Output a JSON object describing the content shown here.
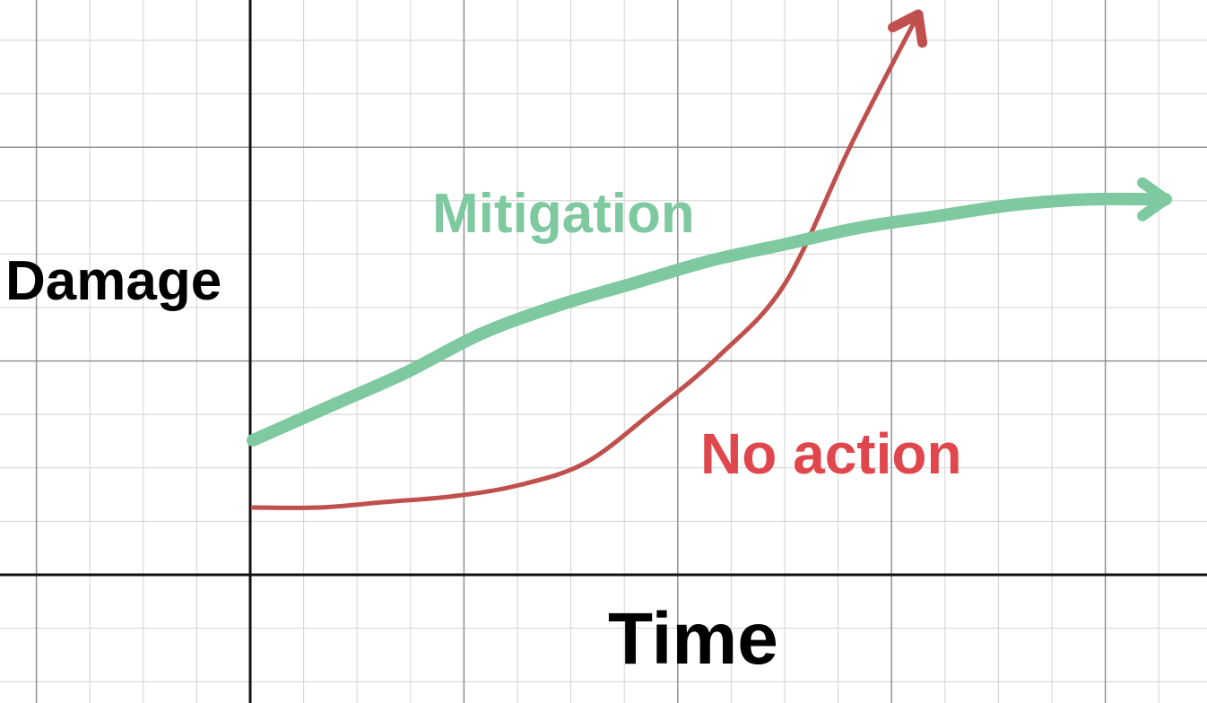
{
  "chart_data": {
    "type": "line",
    "title": "",
    "xlabel": "Time",
    "ylabel": "Damage",
    "grid": true,
    "axes_ticks": false,
    "legend": "none",
    "series": [
      {
        "name": "Mitigation",
        "color": "#7fc9a0",
        "trend": "rises steeply at first, then levels off (concave)",
        "values": [
          0.24,
          0.3,
          0.36,
          0.43,
          0.48,
          0.52,
          0.56,
          0.59,
          0.62,
          0.64,
          0.66,
          0.67,
          0.67
        ]
      },
      {
        "name": "No action",
        "color": "#c0504d",
        "label_color": "#e0474c",
        "trend": "starts low and grows exponentially, overtaking mitigation",
        "values": [
          0.12,
          0.12,
          0.13,
          0.14,
          0.16,
          0.2,
          0.29,
          0.39,
          0.52,
          0.77,
          1.0
        ]
      }
    ]
  }
}
